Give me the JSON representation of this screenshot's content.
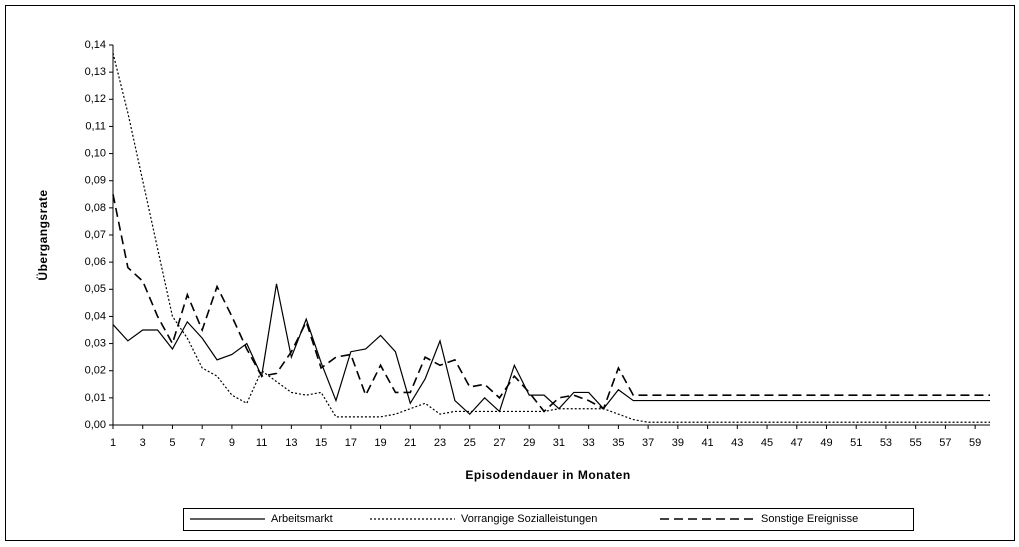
{
  "chart_data": {
    "type": "line",
    "x_label": "Episodendauer in Monaten",
    "y_label": "Übergangsrate",
    "x": [
      1,
      2,
      3,
      4,
      5,
      6,
      7,
      8,
      9,
      10,
      11,
      12,
      13,
      14,
      15,
      16,
      17,
      18,
      19,
      20,
      21,
      22,
      23,
      24,
      25,
      26,
      27,
      28,
      29,
      30,
      31,
      32,
      33,
      34,
      35,
      36,
      37,
      38,
      39,
      40,
      41,
      42,
      43,
      44,
      45,
      46,
      47,
      48,
      49,
      50,
      51,
      52,
      53,
      54,
      55,
      56,
      57,
      58,
      59,
      60
    ],
    "xlim": [
      1,
      60
    ],
    "xticks": [
      1,
      3,
      5,
      7,
      9,
      11,
      13,
      15,
      17,
      19,
      21,
      23,
      25,
      27,
      29,
      31,
      33,
      35,
      37,
      39,
      41,
      43,
      45,
      47,
      49,
      51,
      53,
      55,
      57,
      59
    ],
    "ylim": [
      0,
      0.14
    ],
    "yticks": [
      {
        "value": 0,
        "label": "0,00"
      },
      {
        "value": 0.01,
        "label": "0,01"
      },
      {
        "value": 0.02,
        "label": "0,02"
      },
      {
        "value": 0.03,
        "label": "0,03"
      },
      {
        "value": 0.04,
        "label": "0,04"
      },
      {
        "value": 0.05,
        "label": "0,05"
      },
      {
        "value": 0.06,
        "label": "0,06"
      },
      {
        "value": 0.07,
        "label": "0,07"
      },
      {
        "value": 0.08,
        "label": "0,08"
      },
      {
        "value": 0.09,
        "label": "0,09"
      },
      {
        "value": 0.1,
        "label": "0,10"
      },
      {
        "value": 0.11,
        "label": "0,11"
      },
      {
        "value": 0.12,
        "label": "0,12"
      },
      {
        "value": 0.13,
        "label": "0,13"
      },
      {
        "value": 0.14,
        "label": "0,14"
      }
    ],
    "grid": false,
    "legend": "bottom",
    "series": [
      {
        "name": "Arbeitsmarkt",
        "color": "#000000",
        "dash": "solid",
        "values": [
          0.037,
          0.031,
          0.035,
          0.035,
          0.028,
          0.038,
          0.032,
          0.024,
          0.026,
          0.03,
          0.018,
          0.052,
          0.025,
          0.039,
          0.023,
          0.009,
          0.027,
          0.028,
          0.033,
          0.027,
          0.008,
          0.017,
          0.031,
          0.009,
          0.004,
          0.01,
          0.005,
          0.022,
          0.011,
          0.011,
          0.006,
          0.012,
          0.012,
          0.006,
          0.013,
          0.009,
          0.009,
          0.009,
          0.009,
          0.009,
          0.009,
          0.009,
          0.009,
          0.009,
          0.009,
          0.009,
          0.009,
          0.009,
          0.009,
          0.009,
          0.009,
          0.009,
          0.009,
          0.009,
          0.009,
          0.009,
          0.009,
          0.009,
          0.009,
          0.009
        ]
      },
      {
        "name": "Vorrangige Sozialleistungen",
        "color": "#000000",
        "dash": "dotted",
        "values": [
          0.137,
          0.115,
          0.09,
          0.065,
          0.04,
          0.032,
          0.021,
          0.018,
          0.011,
          0.008,
          0.02,
          0.016,
          0.012,
          0.011,
          0.012,
          0.003,
          0.003,
          0.003,
          0.003,
          0.004,
          0.006,
          0.008,
          0.004,
          0.005,
          0.005,
          0.005,
          0.005,
          0.005,
          0.005,
          0.005,
          0.006,
          0.006,
          0.006,
          0.006,
          0.004,
          0.002,
          0.001,
          0.001,
          0.001,
          0.001,
          0.001,
          0.001,
          0.001,
          0.001,
          0.001,
          0.001,
          0.001,
          0.001,
          0.001,
          0.001,
          0.001,
          0.001,
          0.001,
          0.001,
          0.001,
          0.001,
          0.001,
          0.001,
          0.001,
          0.001
        ]
      },
      {
        "name": "Sonstige Ereignisse",
        "color": "#000000",
        "dash": "dashed",
        "values": [
          0.085,
          0.058,
          0.053,
          0.04,
          0.03,
          0.048,
          0.035,
          0.051,
          0.04,
          0.028,
          0.018,
          0.019,
          0.027,
          0.038,
          0.021,
          0.025,
          0.026,
          0.011,
          0.022,
          0.012,
          0.012,
          0.025,
          0.022,
          0.024,
          0.014,
          0.015,
          0.01,
          0.018,
          0.012,
          0.005,
          0.01,
          0.011,
          0.009,
          0.006,
          0.021,
          0.011,
          0.011,
          0.011,
          0.011,
          0.011,
          0.011,
          0.011,
          0.011,
          0.011,
          0.011,
          0.011,
          0.011,
          0.011,
          0.011,
          0.011,
          0.011,
          0.011,
          0.011,
          0.011,
          0.011,
          0.011,
          0.011,
          0.011,
          0.011,
          0.011
        ]
      }
    ]
  }
}
